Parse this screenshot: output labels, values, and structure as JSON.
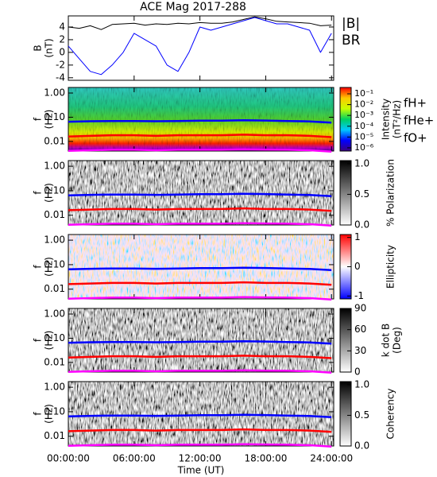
{
  "chart_data": [
    {
      "type": "line",
      "title": "ACE Mag 2017-288",
      "ylabel": [
        "B",
        "(nT)"
      ],
      "x": [
        0,
        1,
        2,
        3,
        4,
        5,
        6,
        7,
        8,
        9,
        10,
        11,
        12,
        13,
        14,
        15,
        16,
        17,
        18,
        19,
        20,
        21,
        22,
        23,
        24
      ],
      "ylim": [
        -4.4,
        5.75
      ],
      "yticks": [
        -4,
        -2,
        0,
        2,
        4
      ],
      "series": [
        {
          "name": "|B|",
          "color": "#000000",
          "values": [
            4,
            3.8,
            4.2,
            3.6,
            4.4,
            4.5,
            4.6,
            4.3,
            4.5,
            4.4,
            4.6,
            4.5,
            4.7,
            4.6,
            4.6,
            4.8,
            5.2,
            5.6,
            5.3,
            4.9,
            4.8,
            4.7,
            4.6,
            4.2,
            4.3
          ]
        },
        {
          "name": "BR",
          "color": "#0000ff",
          "values": [
            1,
            -1,
            -3,
            -3.5,
            -2,
            0,
            3,
            2,
            1,
            -2,
            -3,
            0,
            4,
            3.5,
            4,
            4.5,
            5,
            5.5,
            5,
            4.5,
            4.5,
            4,
            3.5,
            0,
            3
          ]
        }
      ]
    },
    {
      "type": "spectrogram",
      "ylabel": [
        "f",
        "(Hz)"
      ],
      "log_y": true,
      "ylim": [
        0.004,
        1.7
      ],
      "yticks": [
        {
          "value": 1,
          "label": "1.00"
        },
        {
          "value": 0.1,
          "label": "0.10"
        },
        {
          "value": 0.01,
          "label": "0.01"
        }
      ],
      "x": [
        0,
        2,
        4,
        6,
        8,
        10,
        12,
        14,
        16,
        18,
        20,
        22,
        24
      ],
      "series": [
        {
          "name": "fH+",
          "color": "#0000ff",
          "values": [
            0.065,
            0.068,
            0.07,
            0.07,
            0.068,
            0.07,
            0.072,
            0.072,
            0.075,
            0.073,
            0.07,
            0.067,
            0.06
          ]
        },
        {
          "name": "fHe+",
          "color": "#ff0000",
          "values": [
            0.016,
            0.017,
            0.018,
            0.018,
            0.017,
            0.018,
            0.018,
            0.018,
            0.019,
            0.018,
            0.018,
            0.017,
            0.015
          ]
        },
        {
          "name": "fO+",
          "color": "#ff00ff",
          "values": [
            0.0041,
            0.0043,
            0.0045,
            0.0045,
            0.0043,
            0.0045,
            0.0045,
            0.0045,
            0.0047,
            0.0046,
            0.0045,
            0.0043,
            0.0038
          ]
        }
      ],
      "colorbar": {
        "label": [
          "Intensity",
          "(nT²/Hz)"
        ],
        "log": true,
        "lim": [
          5e-07,
          0.39
        ],
        "ticks": [
          {
            "value": 0.1,
            "label": "10⁻¹"
          },
          {
            "value": 0.01,
            "label": "10⁻²"
          },
          {
            "value": 0.001,
            "label": "10⁻³"
          },
          {
            "value": 0.0001,
            "label": "10⁻⁴"
          },
          {
            "value": 1e-05,
            "label": "10⁻⁵"
          },
          {
            "value": 1e-06,
            "label": "10⁻⁶"
          }
        ],
        "colors": [
          "#3a0080",
          "#0000ff",
          "#00c8ff",
          "#00d060",
          "#c8ff00",
          "#ffc800",
          "#ff0000"
        ]
      }
    },
    {
      "type": "spectrogram",
      "ylabel": [
        "f",
        "(Hz)"
      ],
      "log_y": true,
      "ylim": [
        0.004,
        1.7
      ],
      "yticks": [
        {
          "value": 1,
          "label": "1.00"
        },
        {
          "value": 0.1,
          "label": "0.10"
        },
        {
          "value": 0.01,
          "label": "0.01"
        }
      ],
      "colorbar": {
        "label": [
          "% Polarization"
        ],
        "log": false,
        "lim": [
          0,
          1.05
        ],
        "ticks": [
          {
            "value": 0,
            "label": "0.0"
          },
          0.5,
          {
            "value": 1,
            "label": "1.0"
          }
        ],
        "colors": [
          "#ffffff",
          "#000000"
        ]
      }
    },
    {
      "type": "spectrogram",
      "ylabel": [
        "f",
        "(Hz)"
      ],
      "log_y": true,
      "ylim": [
        0.004,
        1.7
      ],
      "yticks": [
        {
          "value": 1,
          "label": "1.00"
        },
        {
          "value": 0.1,
          "label": "0.10"
        },
        {
          "value": 0.01,
          "label": "0.01"
        }
      ],
      "colorbar": {
        "label": [
          "Ellipticity"
        ],
        "log": false,
        "lim": [
          -1.1,
          1.1
        ],
        "ticks": [
          -1,
          0,
          1
        ],
        "colors": [
          "#0000ff",
          "#ffffff",
          "#ff0000"
        ]
      }
    },
    {
      "type": "spectrogram",
      "ylabel": [
        "f",
        "(Hz)"
      ],
      "log_y": true,
      "ylim": [
        0.004,
        1.7
      ],
      "yticks": [
        {
          "value": 1,
          "label": "1.00"
        },
        {
          "value": 0.1,
          "label": "0.10"
        },
        {
          "value": 0.01,
          "label": "0.01"
        }
      ],
      "colorbar": {
        "label": [
          "k dot B",
          "(Deg)"
        ],
        "log": false,
        "lim": [
          0,
          90
        ],
        "ticks": [
          0,
          30,
          60,
          90
        ],
        "colors": [
          "#ffffff",
          "#000000"
        ]
      }
    },
    {
      "type": "spectrogram",
      "ylabel": [
        "f",
        "(Hz)"
      ],
      "log_y": true,
      "ylim": [
        0.004,
        1.7
      ],
      "yticks": [
        {
          "value": 1,
          "label": "1.00"
        },
        {
          "value": 0.1,
          "label": "0.10"
        },
        {
          "value": 0.01,
          "label": "0.01"
        }
      ],
      "xlim": [
        0,
        24.2
      ],
      "xlabel": "Time (UT)",
      "xticks": [
        {
          "value": 0,
          "label": "00:00:00"
        },
        {
          "value": 6,
          "label": "06:00:00"
        },
        {
          "value": 12,
          "label": "12:00:00"
        },
        {
          "value": 18,
          "label": "18:00:00"
        },
        {
          "value": 24,
          "label": "24:00:00"
        }
      ],
      "colorbar": {
        "label": [
          "Coherency"
        ],
        "log": false,
        "lim": [
          0,
          1.05
        ],
        "ticks": [
          {
            "value": 0,
            "label": "0.0"
          },
          0.5,
          {
            "value": 1,
            "label": "1.0"
          }
        ],
        "colors": [
          "#ffffff",
          "#000000"
        ]
      }
    }
  ]
}
